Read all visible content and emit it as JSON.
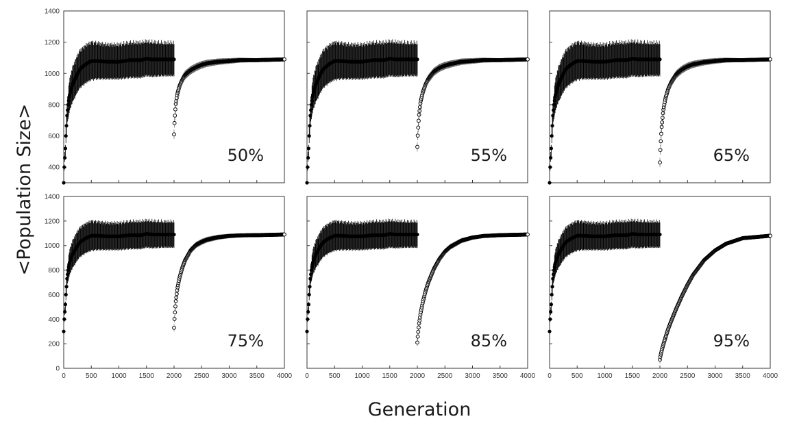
{
  "chart_data": {
    "type": "scatter",
    "xlabel": "Generation",
    "ylabel": "<Population Size>",
    "xlim": [
      0,
      4000
    ],
    "x_ticks": [
      "0",
      "500",
      "1000",
      "1500",
      "2000",
      "2500",
      "3000",
      "3500",
      "4000"
    ],
    "top_row_ylim": [
      300,
      1400
    ],
    "top_row_y_ticks": [
      "400",
      "600",
      "800",
      "1000",
      "1200",
      "1400"
    ],
    "bottom_row_ylim": [
      0,
      1400
    ],
    "bottom_row_y_ticks": [
      "0",
      "200",
      "400",
      "600",
      "800",
      "1000",
      "1200",
      "1400"
    ],
    "grid": false,
    "legend": "none",
    "marker_color": "#000000",
    "phase1": {
      "x": [
        0,
        10,
        20,
        30,
        40,
        60,
        80,
        100,
        150,
        200,
        250,
        300,
        400,
        500,
        600,
        800,
        1000,
        1200,
        1400,
        1500,
        1600,
        1800,
        2000
      ],
      "y": [
        300,
        400,
        460,
        520,
        600,
        730,
        800,
        850,
        920,
        960,
        1000,
        1030,
        1060,
        1080,
        1080,
        1075,
        1075,
        1085,
        1085,
        1095,
        1090,
        1090,
        1090
      ],
      "error_half_width": [
        0,
        20,
        30,
        40,
        50,
        70,
        85,
        100,
        110,
        115,
        118,
        120,
        120,
        120,
        115,
        110,
        110,
        112,
        112,
        110,
        110,
        105,
        105
      ]
    },
    "panels": [
      {
        "label": "50%",
        "recovery": {
          "x": [
            2000,
            2010,
            2030,
            2060,
            2100,
            2150,
            2200,
            2300,
            2400,
            2500,
            2600,
            2800,
            3000,
            3200,
            3500,
            4000
          ],
          "y": [
            610,
            700,
            800,
            870,
            920,
            960,
            990,
            1020,
            1040,
            1055,
            1065,
            1075,
            1080,
            1085,
            1085,
            1090
          ]
        }
      },
      {
        "label": "55%",
        "recovery": {
          "x": [
            2000,
            2010,
            2030,
            2060,
            2100,
            2150,
            2200,
            2300,
            2400,
            2500,
            2600,
            2800,
            3000,
            3200,
            3500,
            4000
          ],
          "y": [
            530,
            620,
            730,
            820,
            880,
            930,
            965,
            1010,
            1035,
            1050,
            1060,
            1075,
            1080,
            1085,
            1085,
            1090
          ]
        }
      },
      {
        "label": "65%",
        "recovery": {
          "x": [
            2000,
            2010,
            2030,
            2060,
            2100,
            2150,
            2200,
            2300,
            2400,
            2500,
            2600,
            2800,
            3000,
            3200,
            3500,
            4000
          ],
          "y": [
            430,
            530,
            650,
            760,
            840,
            900,
            940,
            995,
            1025,
            1045,
            1058,
            1072,
            1080,
            1085,
            1085,
            1090
          ]
        }
      },
      {
        "label": "75%",
        "recovery": {
          "x": [
            2000,
            2010,
            2030,
            2060,
            2100,
            2150,
            2200,
            2300,
            2400,
            2500,
            2600,
            2800,
            3000,
            3200,
            3500,
            4000
          ],
          "y": [
            330,
            420,
            540,
            650,
            740,
            820,
            880,
            960,
            1005,
            1030,
            1048,
            1068,
            1078,
            1083,
            1085,
            1090
          ]
        }
      },
      {
        "label": "85%",
        "recovery": {
          "x": [
            2000,
            2010,
            2030,
            2060,
            2100,
            2150,
            2200,
            2300,
            2400,
            2500,
            2600,
            2800,
            3000,
            3200,
            3500,
            4000
          ],
          "y": [
            210,
            270,
            360,
            450,
            540,
            630,
            700,
            810,
            890,
            950,
            990,
            1040,
            1065,
            1078,
            1085,
            1090
          ]
        }
      },
      {
        "label": "95%",
        "recovery": {
          "x": [
            2000,
            2010,
            2030,
            2060,
            2100,
            2150,
            2200,
            2300,
            2400,
            2500,
            2600,
            2800,
            3000,
            3200,
            3500,
            4000
          ],
          "y": [
            70,
            100,
            140,
            190,
            250,
            320,
            380,
            490,
            590,
            680,
            760,
            880,
            960,
            1015,
            1060,
            1080
          ]
        }
      }
    ]
  }
}
